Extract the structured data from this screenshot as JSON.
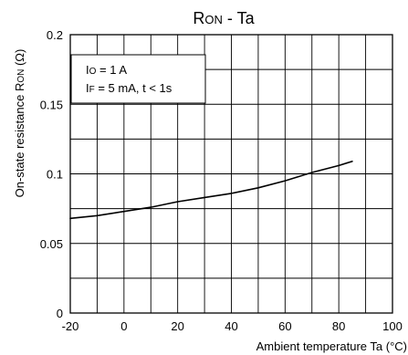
{
  "chart_data": {
    "type": "line",
    "title_main": "R",
    "title_sub": "ON",
    "title_tail": " - Ta",
    "xlabel": "Ambient temperature Ta (°C)",
    "ylabel_main": "On-state resistance R",
    "ylabel_sub": "ON",
    "ylabel_tail": " (Ω)",
    "xlim": [
      -20,
      100
    ],
    "ylim": [
      0,
      0.2
    ],
    "xticks": [
      -20,
      0,
      20,
      40,
      60,
      80,
      100
    ],
    "xtick_labels": [
      "-20",
      "0",
      "20",
      "40",
      "60",
      "80",
      "100"
    ],
    "yticks": [
      0,
      0.05,
      0.1,
      0.15,
      0.2
    ],
    "ytick_labels": [
      "0",
      "0.05",
      "0.1",
      "0.15",
      "0.2"
    ],
    "grid": true,
    "annotations": [
      {
        "main": "I",
        "sub": "O",
        "tail": " = 1 A"
      },
      {
        "main": "I",
        "sub": "F",
        "tail": " = 5 mA, t < 1s"
      }
    ],
    "series": [
      {
        "x": [
          -20,
          -10,
          0,
          10,
          20,
          30,
          40,
          50,
          60,
          70,
          80,
          85
        ],
        "y": [
          0.068,
          0.07,
          0.073,
          0.076,
          0.08,
          0.083,
          0.086,
          0.09,
          0.095,
          0.101,
          0.106,
          0.109
        ]
      }
    ],
    "colors": {
      "line": "#000000",
      "grid": "#000000",
      "background": "#ffffff"
    }
  }
}
